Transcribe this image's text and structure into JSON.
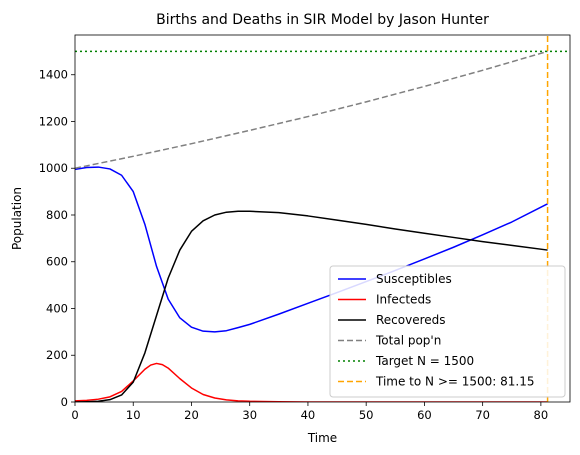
{
  "chart_data": {
    "type": "line",
    "title": "Births and Deaths in SIR Model by Jason Hunter",
    "xlabel": "Time",
    "ylabel": "Population",
    "xlim": [
      0,
      85
    ],
    "ylim": [
      0,
      1570
    ],
    "xticks": [
      0,
      10,
      20,
      30,
      40,
      50,
      60,
      70,
      80
    ],
    "yticks": [
      0,
      200,
      400,
      600,
      800,
      1000,
      1200,
      1400
    ],
    "grid": false,
    "legend_position": "lower-right",
    "series": [
      {
        "name": "Susceptibles",
        "color": "#0000ff",
        "style": "solid",
        "x": [
          0,
          2,
          4,
          6,
          8,
          10,
          12,
          14,
          16,
          18,
          20,
          22,
          24,
          26,
          28,
          30,
          35,
          40,
          45,
          50,
          55,
          60,
          65,
          70,
          75,
          81.15
        ],
        "y": [
          995,
          1003,
          1005,
          997,
          970,
          900,
          760,
          580,
          440,
          360,
          320,
          303,
          300,
          305,
          318,
          332,
          376,
          422,
          468,
          515,
          563,
          612,
          662,
          715,
          770,
          848
        ]
      },
      {
        "name": "Infecteds",
        "color": "#ff0000",
        "style": "solid",
        "x": [
          0,
          2,
          4,
          6,
          8,
          10,
          12,
          13,
          14,
          15,
          16,
          18,
          20,
          22,
          24,
          26,
          28,
          30,
          35,
          40,
          50,
          60,
          70,
          81.15
        ],
        "y": [
          5,
          7,
          12,
          22,
          45,
          90,
          140,
          158,
          165,
          160,
          145,
          100,
          60,
          32,
          17,
          9,
          5,
          3,
          1,
          0,
          0,
          0,
          0,
          0
        ]
      },
      {
        "name": "Recovereds",
        "color": "#000000",
        "style": "solid",
        "x": [
          0,
          2,
          4,
          6,
          8,
          10,
          12,
          14,
          16,
          18,
          20,
          22,
          24,
          26,
          28,
          30,
          35,
          40,
          45,
          50,
          55,
          60,
          65,
          70,
          75,
          81.15
        ],
        "y": [
          0,
          1,
          3,
          10,
          30,
          85,
          210,
          370,
          530,
          650,
          730,
          775,
          800,
          812,
          816,
          816,
          810,
          796,
          778,
          760,
          740,
          722,
          704,
          686,
          670,
          650
        ]
      },
      {
        "name": "Total pop'n",
        "color": "#808080",
        "style": "dashed",
        "x": [
          0,
          10,
          20,
          30,
          40,
          50,
          60,
          70,
          81.15
        ],
        "y": [
          1000,
          1051,
          1105,
          1162,
          1221,
          1284,
          1350,
          1419,
          1500
        ]
      },
      {
        "name": "Target N = 1500",
        "color": "#008000",
        "style": "dotted",
        "x": [
          0,
          85
        ],
        "y": [
          1500,
          1500
        ]
      },
      {
        "name": "Time to N >= 1500: 81.15",
        "color": "#ffa500",
        "style": "dashed",
        "x": [
          81.15,
          81.15
        ],
        "y": [
          0,
          1570
        ]
      }
    ]
  }
}
